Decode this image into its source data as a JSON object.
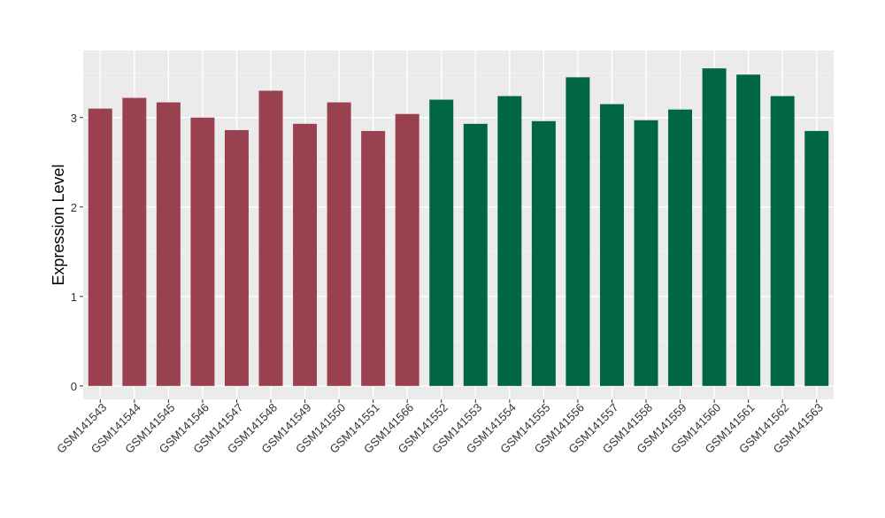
{
  "chart_data": {
    "type": "bar",
    "title": "",
    "xlabel": "",
    "ylabel": "Expression Level",
    "ylim": [
      -0.15,
      3.75
    ],
    "yticks": [
      0,
      1,
      2,
      3
    ],
    "grid": true,
    "legend": "none",
    "colors": {
      "panel": "#ebebeb",
      "grid_major": "#ffffff",
      "grid_minor": "#f5f5f5",
      "group_1": "#9a4150",
      "group_2": "#006644",
      "tick_text": "#333333",
      "axis_title": "#000000"
    },
    "categories": [
      "GSM141543",
      "GSM141544",
      "GSM141545",
      "GSM141546",
      "GSM141547",
      "GSM141548",
      "GSM141549",
      "GSM141550",
      "GSM141551",
      "GSM141566",
      "GSM141552",
      "GSM141553",
      "GSM141554",
      "GSM141555",
      "GSM141556",
      "GSM141557",
      "GSM141558",
      "GSM141559",
      "GSM141560",
      "GSM141561",
      "GSM141562",
      "GSM141563"
    ],
    "values": [
      3.1,
      3.22,
      3.17,
      3.0,
      2.86,
      3.3,
      2.93,
      3.17,
      2.85,
      3.04,
      3.2,
      2.93,
      3.24,
      2.96,
      3.45,
      3.15,
      2.97,
      3.09,
      3.55,
      3.48,
      3.24,
      2.85
    ],
    "groups": [
      1,
      1,
      1,
      1,
      1,
      1,
      1,
      1,
      1,
      1,
      2,
      2,
      2,
      2,
      2,
      2,
      2,
      2,
      2,
      2,
      2,
      2
    ]
  }
}
